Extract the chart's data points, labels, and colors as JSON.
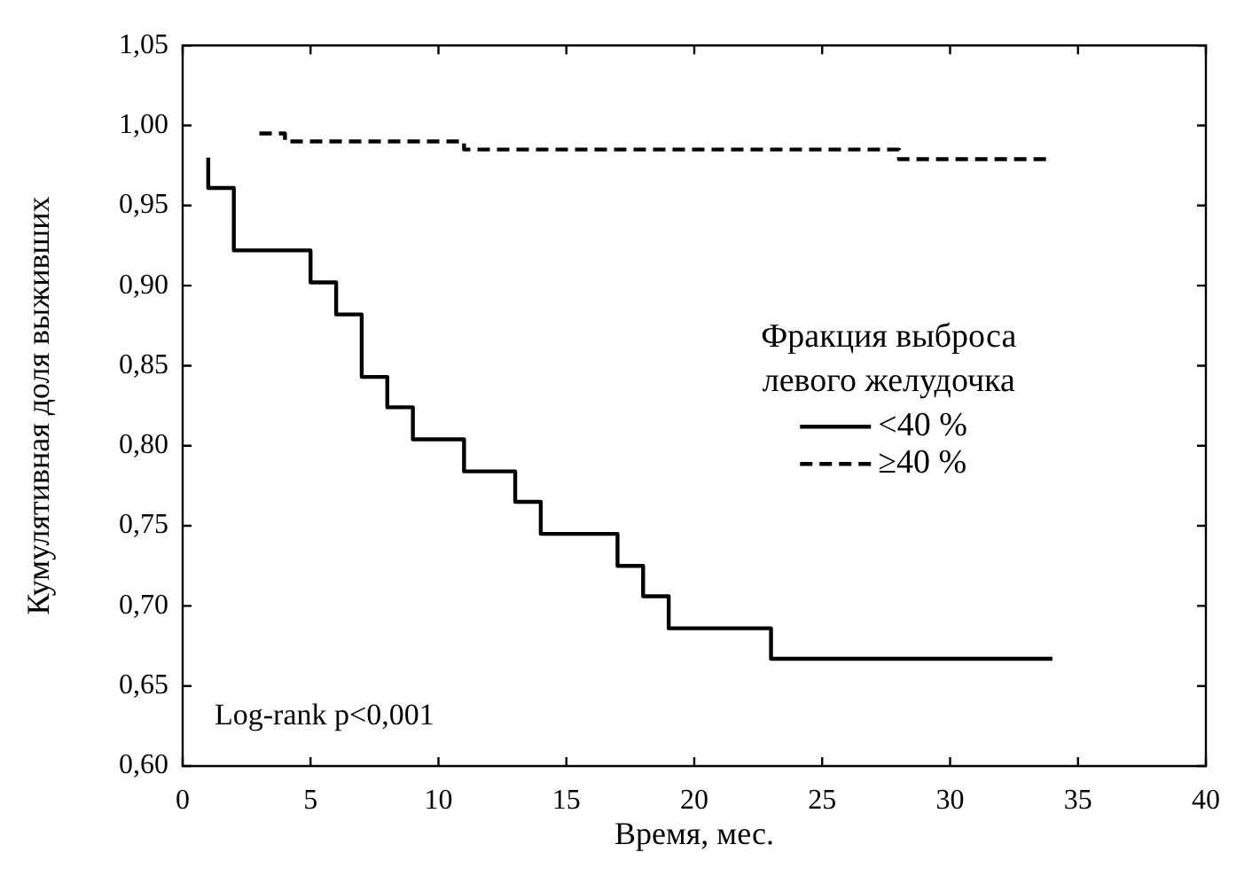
{
  "chart_data": {
    "type": "step",
    "xlabel": "Время, мес.",
    "ylabel": "Кумулятивная доля выживших",
    "legend_title": "Фракция выброса левого желудочка",
    "legend": "right",
    "grid": false,
    "marker": "none",
    "annotations": [
      "Log-rank p<0,001"
    ],
    "xlim": [
      0,
      40
    ],
    "xticks": [
      0,
      5,
      10,
      15,
      20,
      25,
      30,
      35,
      40
    ],
    "ylim": [
      0.6,
      1.05
    ],
    "yticks": [
      {
        "value": 0.6,
        "label": "0,60"
      },
      {
        "value": 0.65,
        "label": "0,65"
      },
      {
        "value": 0.7,
        "label": "0,70"
      },
      {
        "value": 0.75,
        "label": "0,75"
      },
      {
        "value": 0.8,
        "label": "0,80"
      },
      {
        "value": 0.85,
        "label": "0,85"
      },
      {
        "value": 0.9,
        "label": "0,90"
      },
      {
        "value": 0.95,
        "label": "0,95"
      },
      {
        "value": 1.0,
        "label": "1,00"
      },
      {
        "value": 1.05,
        "label": "1,05"
      }
    ],
    "series": [
      {
        "name": "<40 %",
        "color": "#000000",
        "line_style": "solid",
        "x": [
          1,
          1,
          2,
          5,
          6,
          7,
          8,
          9,
          11,
          13,
          14,
          17,
          18,
          19,
          23,
          34
        ],
        "values": [
          0.98,
          0.961,
          0.922,
          0.902,
          0.882,
          0.843,
          0.824,
          0.804,
          0.784,
          0.765,
          0.745,
          0.725,
          0.706,
          0.686,
          0.667,
          0.667
        ]
      },
      {
        "name": "≥40 %",
        "color": "#000000",
        "line_style": "dashed",
        "x": [
          3,
          4,
          11,
          28,
          34
        ],
        "values": [
          0.995,
          0.99,
          0.985,
          0.979,
          0.979
        ]
      }
    ]
  }
}
